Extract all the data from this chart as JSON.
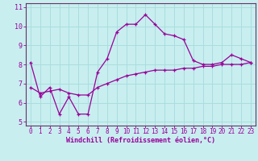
{
  "xlabel": "Windchill (Refroidissement éolien,°C)",
  "background_color": "#c8eef0",
  "grid_color": "#aadddd",
  "line_color": "#990099",
  "spine_color": "#663366",
  "xlim": [
    -0.5,
    23.5
  ],
  "ylim": [
    4.8,
    11.2
  ],
  "yticks": [
    5,
    6,
    7,
    8,
    9,
    10,
    11
  ],
  "xticks": [
    0,
    1,
    2,
    3,
    4,
    5,
    6,
    7,
    8,
    9,
    10,
    11,
    12,
    13,
    14,
    15,
    16,
    17,
    18,
    19,
    20,
    21,
    22,
    23
  ],
  "hours": [
    0,
    1,
    2,
    3,
    4,
    5,
    6,
    7,
    8,
    9,
    10,
    11,
    12,
    13,
    14,
    15,
    16,
    17,
    18,
    19,
    20,
    21,
    22,
    23
  ],
  "line1": [
    8.1,
    6.3,
    6.8,
    5.4,
    6.3,
    5.4,
    5.4,
    7.6,
    8.3,
    9.7,
    10.1,
    10.1,
    10.6,
    10.1,
    9.6,
    9.5,
    9.3,
    8.2,
    8.0,
    8.0,
    8.1,
    8.5,
    8.3,
    8.1
  ],
  "line2": [
    6.8,
    6.5,
    6.6,
    6.7,
    6.5,
    6.4,
    6.4,
    6.8,
    7.0,
    7.2,
    7.4,
    7.5,
    7.6,
    7.7,
    7.7,
    7.7,
    7.8,
    7.8,
    7.9,
    7.9,
    8.0,
    8.0,
    8.0,
    8.1
  ],
  "tick_fontsize": 5.5,
  "xlabel_fontsize": 6.0
}
